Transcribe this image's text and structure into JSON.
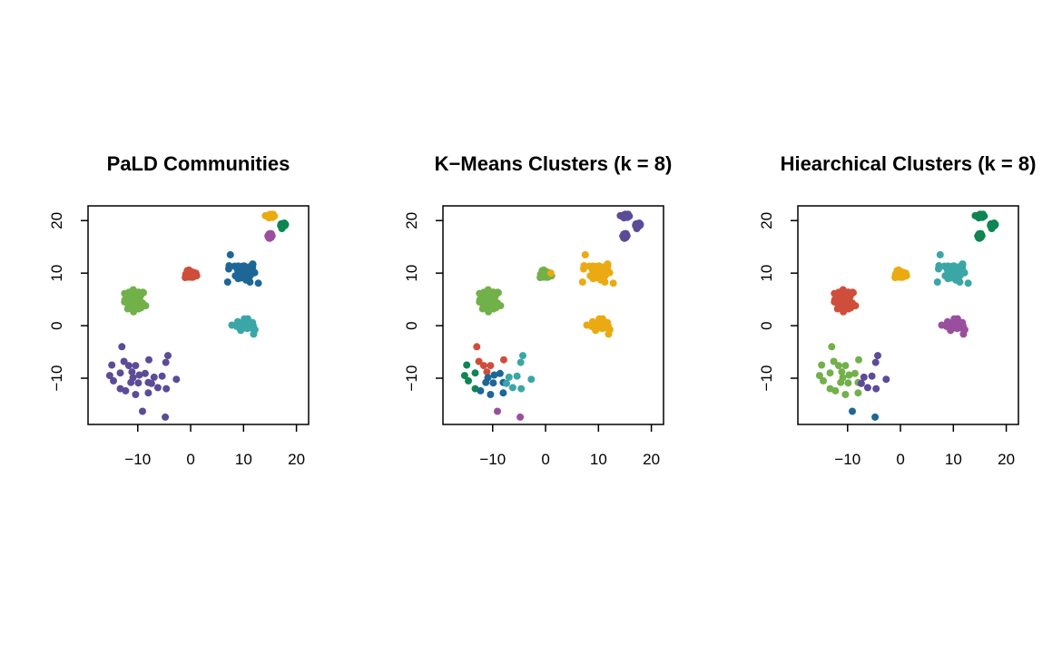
{
  "palette": {
    "purple": "#5C4B97",
    "lightgreen": "#72B04A",
    "red": "#CF4E3B",
    "blue": "#1D6797",
    "cyan": "#3AA6A6",
    "yellow": "#EBAA12",
    "darkgreen": "#0E8552",
    "magenta": "#9A4F9E"
  },
  "chart_data": {
    "type": "scatter",
    "panels": [
      {
        "title": "PaLD Communities",
        "label_key": "pald"
      },
      {
        "title": "K−Means Clusters (k = 8)",
        "label_key": "km"
      },
      {
        "title": "Hiearchical Clusters (k = 8)",
        "label_key": "hc"
      }
    ],
    "xlim": [
      -19.4,
      22.3
    ],
    "ylim": [
      -18.8,
      22.8
    ],
    "xticks": [
      -10,
      0,
      10,
      20
    ],
    "yticks": [
      -10,
      0,
      10,
      20
    ],
    "xtick_labels": [
      "−10",
      "0",
      "10",
      "20"
    ],
    "ytick_labels": [
      "−10",
      "0",
      "10",
      "20"
    ],
    "dense_clusters": [
      {
        "center": [
          -10.5,
          5.0
        ],
        "spread": [
          1.6,
          1.5
        ],
        "n": 60,
        "pald": "lightgreen",
        "km": "lightgreen",
        "hc": "red"
      },
      {
        "center": [
          0.0,
          9.7
        ],
        "spread": [
          0.9,
          0.6
        ],
        "n": 50,
        "pald": "red",
        "km": "lightgreen",
        "hc": "yellow"
      },
      {
        "center": [
          10.4,
          10.3
        ],
        "spread": [
          1.5,
          1.6
        ],
        "n": 70,
        "pald": "blue",
        "km": "yellow",
        "hc": "cyan"
      },
      {
        "center": [
          10.2,
          0.2
        ],
        "spread": [
          1.2,
          0.8
        ],
        "n": 40,
        "pald": "cyan",
        "km": "yellow",
        "hc": "magenta"
      },
      {
        "center": [
          15.0,
          20.9
        ],
        "spread": [
          0.5,
          0.3
        ],
        "n": 30,
        "pald": "yellow",
        "km": "purple",
        "hc": "darkgreen"
      },
      {
        "center": [
          17.5,
          19.1
        ],
        "spread": [
          0.4,
          0.3
        ],
        "n": 30,
        "pald": "darkgreen",
        "km": "purple",
        "hc": "darkgreen"
      },
      {
        "center": [
          15.0,
          17.1
        ],
        "spread": [
          0.4,
          0.3
        ],
        "n": 30,
        "pald": "magenta",
        "km": "purple",
        "hc": "darkgreen"
      }
    ],
    "outliers": [
      {
        "x": 7.5,
        "y": 13.5,
        "pald": "blue",
        "km": "yellow",
        "hc": "cyan"
      },
      {
        "x": 7.0,
        "y": 8.3,
        "pald": "blue",
        "km": "yellow",
        "hc": "cyan"
      },
      {
        "x": 7.2,
        "y": 10.8,
        "pald": "blue",
        "km": "yellow",
        "hc": "cyan"
      },
      {
        "x": 12.8,
        "y": 8.1,
        "pald": "blue",
        "km": "yellow",
        "hc": "cyan"
      },
      {
        "x": 7.8,
        "y": 0.1,
        "pald": "cyan",
        "km": "yellow",
        "hc": "magenta"
      },
      {
        "x": 11.9,
        "y": -1.6,
        "pald": "cyan",
        "km": "yellow",
        "hc": "magenta"
      },
      {
        "x": -11.9,
        "y": 3.2,
        "pald": "lightgreen",
        "km": "lightgreen",
        "hc": "red"
      },
      {
        "x": -8.5,
        "y": 3.8,
        "pald": "lightgreen",
        "km": "lightgreen",
        "hc": "red"
      },
      {
        "x": 1.0,
        "y": 10.0,
        "pald": "red",
        "km": "yellow",
        "hc": "yellow"
      }
    ],
    "sparse_points": [
      {
        "x": -13.0,
        "y": -4.0,
        "pald": "purple",
        "km": "red",
        "hc": "lightgreen"
      },
      {
        "x": -14.9,
        "y": -7.5,
        "pald": "purple",
        "km": "darkgreen",
        "hc": "lightgreen"
      },
      {
        "x": -15.3,
        "y": -9.5,
        "pald": "purple",
        "km": "darkgreen",
        "hc": "lightgreen"
      },
      {
        "x": -14.6,
        "y": -10.5,
        "pald": "purple",
        "km": "darkgreen",
        "hc": "lightgreen"
      },
      {
        "x": -13.3,
        "y": -12.0,
        "pald": "purple",
        "km": "darkgreen",
        "hc": "lightgreen"
      },
      {
        "x": -12.3,
        "y": -12.4,
        "pald": "purple",
        "km": "blue",
        "hc": "lightgreen"
      },
      {
        "x": -12.6,
        "y": -6.8,
        "pald": "purple",
        "km": "red",
        "hc": "lightgreen"
      },
      {
        "x": -13.3,
        "y": -9.0,
        "pald": "purple",
        "km": "darkgreen",
        "hc": "lightgreen"
      },
      {
        "x": -11.7,
        "y": -7.6,
        "pald": "purple",
        "km": "red",
        "hc": "lightgreen"
      },
      {
        "x": -10.4,
        "y": -7.6,
        "pald": "purple",
        "km": "red",
        "hc": "lightgreen"
      },
      {
        "x": -11.1,
        "y": -8.8,
        "pald": "purple",
        "km": "red",
        "hc": "lightgreen"
      },
      {
        "x": -11.3,
        "y": -10.8,
        "pald": "purple",
        "km": "blue",
        "hc": "lightgreen"
      },
      {
        "x": -9.9,
        "y": -10.9,
        "pald": "purple",
        "km": "blue",
        "hc": "lightgreen"
      },
      {
        "x": -10.4,
        "y": -13.1,
        "pald": "purple",
        "km": "blue",
        "hc": "lightgreen"
      },
      {
        "x": -9.1,
        "y": -16.3,
        "pald": "purple",
        "km": "magenta",
        "hc": "blue"
      },
      {
        "x": -8.6,
        "y": -9.1,
        "pald": "purple",
        "km": "blue",
        "hc": "lightgreen"
      },
      {
        "x": -7.9,
        "y": -6.5,
        "pald": "purple",
        "km": "red",
        "hc": "lightgreen"
      },
      {
        "x": -8.0,
        "y": -12.8,
        "pald": "purple",
        "km": "blue",
        "hc": "lightgreen"
      },
      {
        "x": -8.0,
        "y": -10.8,
        "pald": "purple",
        "km": "blue",
        "hc": "lightgreen"
      },
      {
        "x": -6.9,
        "y": -9.8,
        "pald": "purple",
        "km": "cyan",
        "hc": "purple"
      },
      {
        "x": -6.2,
        "y": -11.8,
        "pald": "purple",
        "km": "cyan",
        "hc": "purple"
      },
      {
        "x": -5.4,
        "y": -9.6,
        "pald": "purple",
        "km": "cyan",
        "hc": "purple"
      },
      {
        "x": -4.6,
        "y": -12.0,
        "pald": "purple",
        "km": "cyan",
        "hc": "purple"
      },
      {
        "x": -4.7,
        "y": -7.0,
        "pald": "purple",
        "km": "cyan",
        "hc": "purple"
      },
      {
        "x": -4.3,
        "y": -5.7,
        "pald": "purple",
        "km": "cyan",
        "hc": "purple"
      },
      {
        "x": -2.7,
        "y": -10.2,
        "pald": "purple",
        "km": "cyan",
        "hc": "purple"
      },
      {
        "x": -4.8,
        "y": -17.4,
        "pald": "purple",
        "km": "magenta",
        "hc": "blue"
      },
      {
        "x": -9.7,
        "y": -9.4,
        "pald": "purple",
        "km": "blue",
        "hc": "lightgreen"
      },
      {
        "x": -7.4,
        "y": -11.0,
        "pald": "purple",
        "km": "cyan",
        "hc": "purple"
      },
      {
        "x": -10.9,
        "y": -9.9,
        "pald": "purple",
        "km": "blue",
        "hc": "lightgreen"
      }
    ]
  }
}
